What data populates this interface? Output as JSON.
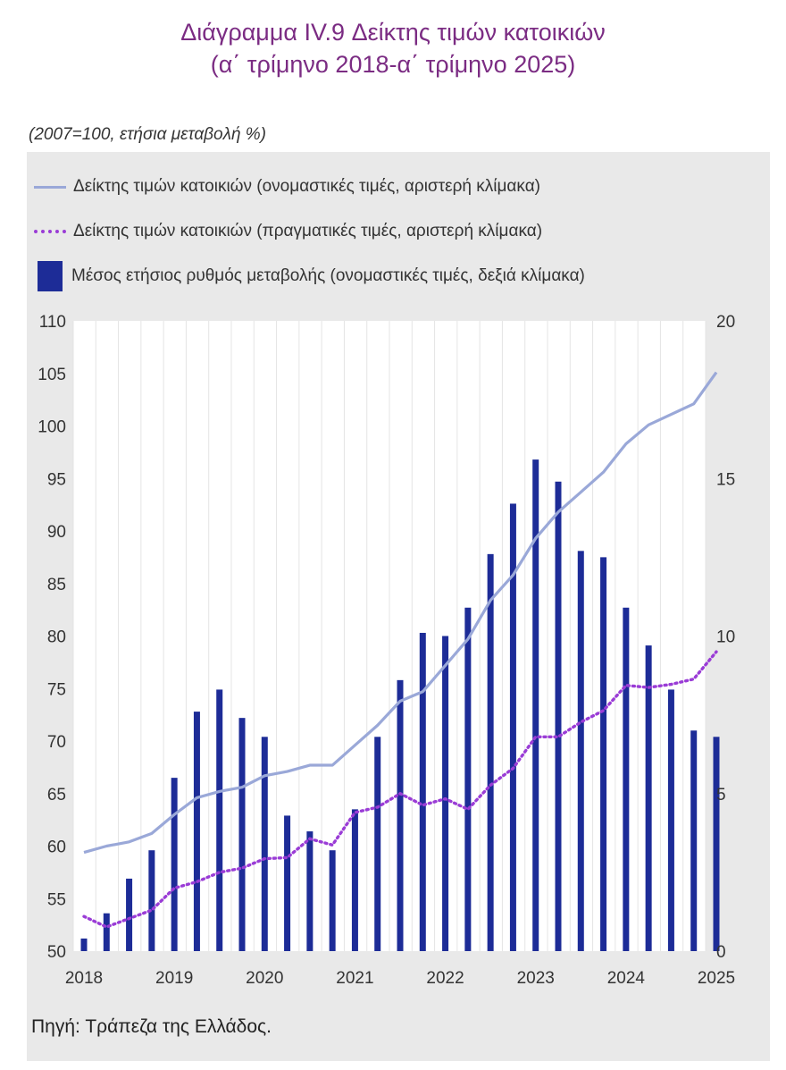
{
  "title_line1": "Διάγραμμα IV.9 Δείκτης τιμών κατοικιών",
  "title_line2": "(α΄ τρίμηνο 2018-α΄ τρίμηνο 2025)",
  "source": "Πηγή: Τράπεζα της Ελλάδος.",
  "chart_data": {
    "type": "bar",
    "title": "Διάγραμμα IV.9 Δείκτης τιμών κατοικιών (α΄ τρίμηνο 2018-α΄ τρίμηνο 2025)",
    "subtitle": "(2007=100, ετήσια μεταβολή %)",
    "quarters": [
      "2018Q1",
      "2018Q2",
      "2018Q3",
      "2018Q4",
      "2019Q1",
      "2019Q2",
      "2019Q3",
      "2019Q4",
      "2020Q1",
      "2020Q2",
      "2020Q3",
      "2020Q4",
      "2021Q1",
      "2021Q2",
      "2021Q3",
      "2021Q4",
      "2022Q1",
      "2022Q2",
      "2022Q3",
      "2022Q4",
      "2023Q1",
      "2023Q2",
      "2023Q3",
      "2023Q4",
      "2024Q1",
      "2024Q2",
      "2024Q3",
      "2024Q4",
      "2025Q1"
    ],
    "x_tick_labels": [
      "2018",
      "2019",
      "2020",
      "2021",
      "2022",
      "2023",
      "2024",
      "2025"
    ],
    "left_axis": {
      "ylim": [
        50,
        110
      ],
      "ticks": [
        "50",
        "55",
        "60",
        "65",
        "70",
        "75",
        "80",
        "85",
        "90",
        "95",
        "100",
        "105",
        "110"
      ]
    },
    "right_axis": {
      "ylim": [
        0,
        20
      ],
      "ticks": [
        "0",
        "5",
        "10",
        "15",
        "20"
      ]
    },
    "series": [
      {
        "name": "Δείκτης τιμών κατοικιών (ονομαστικές τιμές, αριστερή κλίμακα)",
        "kind": "line",
        "axis": "left",
        "color": "#9aa8d8",
        "values": [
          59.4,
          60.0,
          60.4,
          61.2,
          63.0,
          64.6,
          65.2,
          65.6,
          66.7,
          67.1,
          67.7,
          67.7,
          69.6,
          71.5,
          73.8,
          74.7,
          77.2,
          79.7,
          83.4,
          85.8,
          89.3,
          91.8,
          93.7,
          95.6,
          98.3,
          100.1,
          101.1,
          102.1,
          105.1
        ]
      },
      {
        "name": "Δείκτης τιμών κατοικιών (πραγματικές τιμές, αριστερή κλίμακα)",
        "kind": "dotted-line",
        "axis": "left",
        "color": "#9a3cd6",
        "values": [
          53.3,
          52.3,
          53.1,
          53.9,
          56.0,
          56.6,
          57.5,
          57.9,
          58.8,
          58.9,
          60.7,
          60.1,
          63.2,
          63.7,
          65.0,
          63.9,
          64.5,
          63.5,
          65.8,
          67.4,
          70.4,
          70.4,
          71.8,
          72.9,
          75.3,
          75.1,
          75.4,
          75.9,
          78.5
        ]
      },
      {
        "name": "Μέσος ετήσιος ρυθμός μεταβολής (ονομαστικές τιμές, δεξιά κλίμακα)",
        "kind": "bar",
        "axis": "right",
        "color": "#1d2c97",
        "values": [
          0.4,
          1.2,
          2.3,
          3.2,
          5.5,
          7.6,
          8.3,
          7.4,
          6.8,
          4.3,
          3.8,
          3.2,
          4.5,
          6.8,
          8.6,
          10.1,
          10.0,
          10.9,
          12.6,
          14.2,
          15.6,
          14.9,
          12.7,
          12.5,
          10.9,
          9.7,
          8.3,
          7.0,
          6.8
        ]
      }
    ]
  }
}
